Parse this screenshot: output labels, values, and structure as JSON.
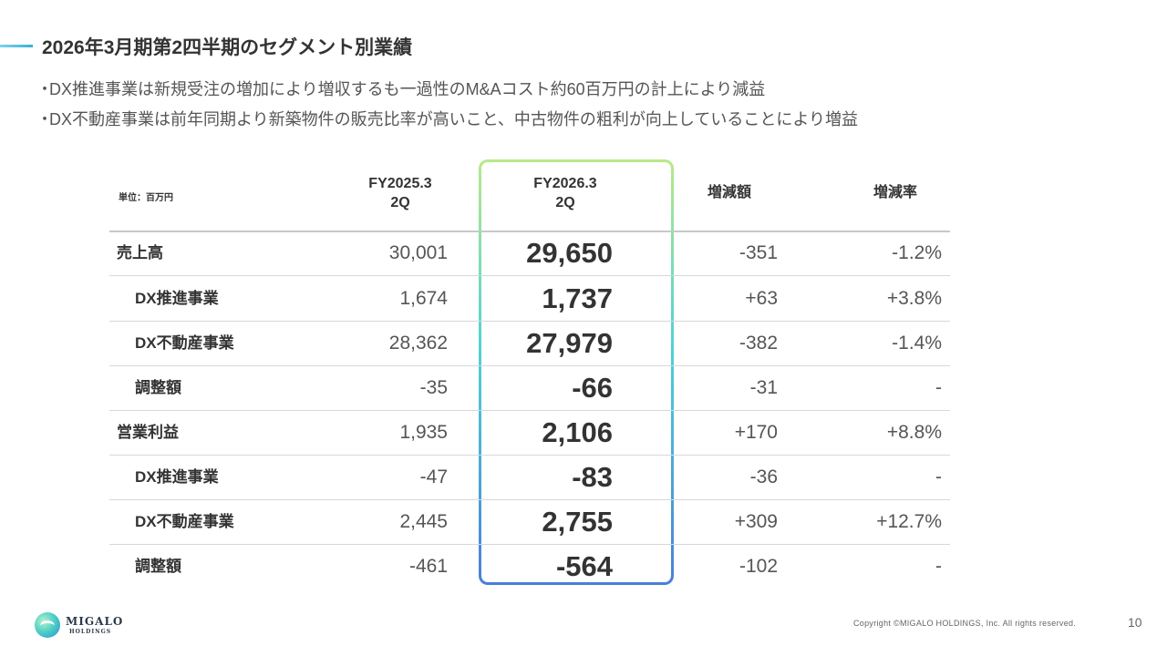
{
  "title": "2026年3月期第2四半期のセグメント別業績",
  "bullets": [
    "DX推進事業は新規受注の増加により増収するも一過性のM&Aコスト約60百万円の計上により減益",
    "DX不動産事業は前年同期より新築物件の販売比率が高いこと、中古物件の粗利が向上していることにより増益"
  ],
  "bullet_marker": "・",
  "table": {
    "unit": "単位：百万円",
    "headers": {
      "prev_line1": "FY2025.3",
      "prev_line2": "2Q",
      "cur_line1": "FY2026.3",
      "cur_line2": "2Q",
      "change": "増減額",
      "rate": "増減率"
    },
    "rows": [
      {
        "label": "売上高",
        "prev": "30,001",
        "cur": "29,650",
        "change": "-351",
        "rate": "-1.2%"
      },
      {
        "label": "DX推進事業",
        "prev": "1,674",
        "cur": "1,737",
        "change": "+63",
        "rate": "+3.8%"
      },
      {
        "label": "DX不動産事業",
        "prev": "28,362",
        "cur": "27,979",
        "change": "-382",
        "rate": "-1.4%"
      },
      {
        "label": "調整額",
        "prev": "-35",
        "cur": "-66",
        "change": "-31",
        "rate": "-"
      },
      {
        "label": "営業利益",
        "prev": "1,935",
        "cur": "2,106",
        "change": "+170",
        "rate": "+8.8%"
      },
      {
        "label": "DX推進事業",
        "prev": "-47",
        "cur": "-83",
        "change": "-36",
        "rate": "-"
      },
      {
        "label": "DX不動産事業",
        "prev": "2,445",
        "cur": "2,755",
        "change": "+309",
        "rate": "+12.7%"
      },
      {
        "label": "調整額",
        "prev": "-461",
        "cur": "-564",
        "change": "-102",
        "rate": "-"
      }
    ]
  },
  "footer": {
    "logo_name": "MIGALO",
    "logo_sub": "HOLDINGS",
    "copyright": "Copyright ©MIGALO HOLDINGS, Inc. All rights reserved.",
    "page": "10"
  },
  "colors": {
    "highlight_top": "#b8e986",
    "highlight_mid": "#4fd1d9",
    "highlight_bottom": "#4a7fd6",
    "accent": "#3ab0d8"
  },
  "icons": {
    "logo": "migalo-logo-icon"
  }
}
